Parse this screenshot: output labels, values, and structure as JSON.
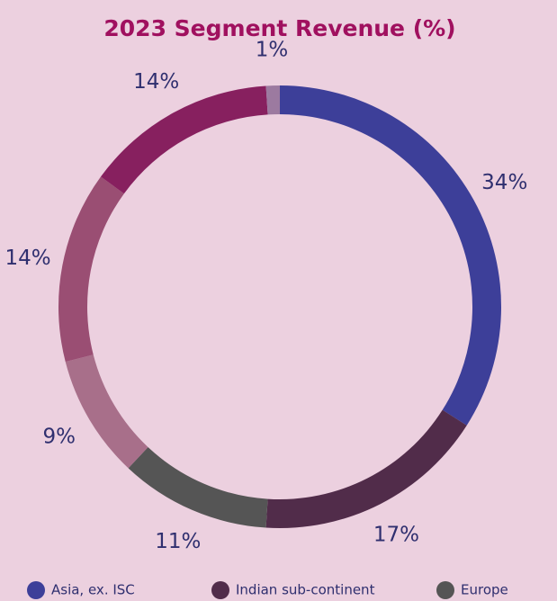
{
  "chart_data": {
    "type": "donut",
    "title": "2023 Segment Revenue (%)",
    "categories": [
      "Asia, ex. ISC",
      "Indian sub-continent",
      "Europe",
      null,
      null,
      null,
      null
    ],
    "values": [
      34,
      17,
      11,
      9,
      14,
      14,
      1
    ],
    "value_labels": [
      "34%",
      "17%",
      "11%",
      "9%",
      "14%",
      "14%",
      "1%"
    ],
    "colors": [
      "#3d3f99",
      "#512c4a",
      "#555555",
      "#a86f8a",
      "#9a4e73",
      "#87205f",
      "#9c7aa0"
    ]
  }
}
